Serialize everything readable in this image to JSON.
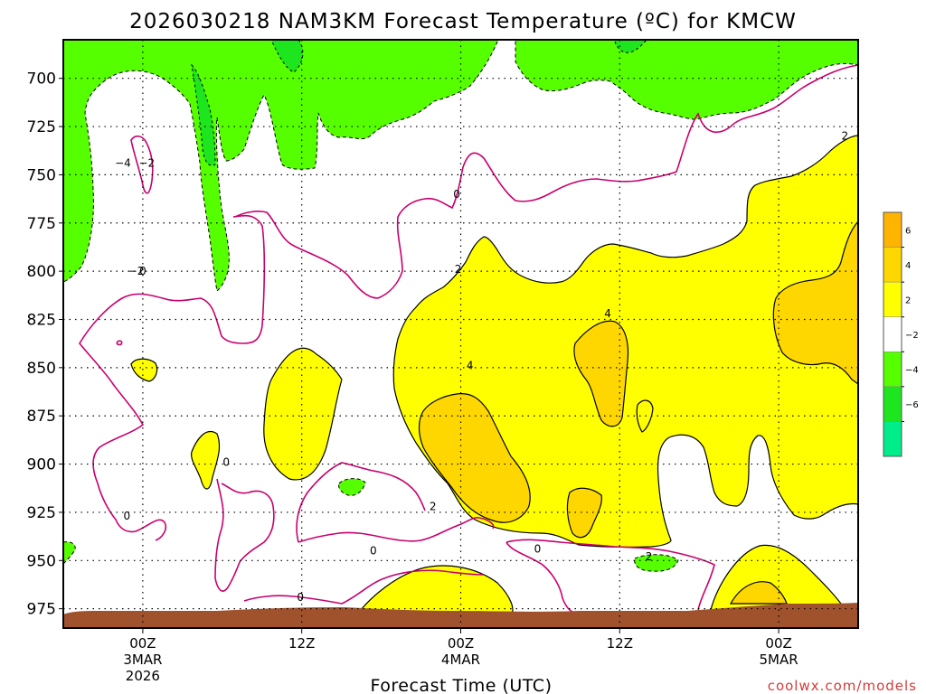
{
  "chart_data": {
    "type": "heatmap",
    "title": "2026030218 NAM3KM Forecast Temperature (ºC) for KMCW",
    "xlabel": "Forecast Time (UTC)",
    "ylabel": "",
    "y_ticks": [
      "700",
      "725",
      "750",
      "775",
      "800",
      "825",
      "850",
      "875",
      "900",
      "925",
      "950",
      "975"
    ],
    "y_tick_values": [
      700,
      725,
      750,
      775,
      800,
      825,
      850,
      875,
      900,
      925,
      950,
      975
    ],
    "ylim": [
      680,
      985
    ],
    "y_inverted": true,
    "x_ticks": [
      {
        "l1": "00Z",
        "l2": "3MAR",
        "l3": "2026",
        "hour": 6
      },
      {
        "l1": "12Z",
        "l2": "",
        "l3": "",
        "hour": 18
      },
      {
        "l1": "00Z",
        "l2": "4MAR",
        "l3": "",
        "hour": 30
      },
      {
        "l1": "12Z",
        "l2": "",
        "l3": "",
        "hour": 42
      },
      {
        "l1": "00Z",
        "l2": "5MAR",
        "l3": "",
        "hour": 54
      }
    ],
    "xlim": [
      0,
      60
    ],
    "grid": true,
    "colorbar": {
      "ticks": [
        "6",
        "4",
        "2",
        "−2",
        "−4",
        "−6"
      ],
      "bands": [
        {
          "from": 6,
          "to": 8,
          "color": "#ffb400"
        },
        {
          "from": 4,
          "to": 6,
          "color": "#ffd700"
        },
        {
          "from": 2,
          "to": 4,
          "color": "#ffff00"
        },
        {
          "from": -2,
          "to": 2,
          "color": "#ffffff"
        },
        {
          "from": -4,
          "to": -2,
          "color": "#55ff00"
        },
        {
          "from": -6,
          "to": -4,
          "color": "#1ee61e"
        },
        {
          "from": -8,
          "to": -6,
          "color": "#00ee8a"
        }
      ]
    },
    "contour_labels": [
      {
        "text": "−4",
        "hour": 4.5,
        "p": 744
      },
      {
        "text": "−2",
        "hour": 6.3,
        "p": 744
      },
      {
        "text": "0",
        "hour": 29.7,
        "p": 760
      },
      {
        "text": "2",
        "hour": 59.0,
        "p": 730
      },
      {
        "text": "0",
        "hour": 6.0,
        "p": 800
      },
      {
        "text": "−2",
        "hour": 5.5,
        "p": 800
      },
      {
        "text": "2",
        "hour": 29.8,
        "p": 799
      },
      {
        "text": "4",
        "hour": 41.1,
        "p": 822
      },
      {
        "text": "4",
        "hour": 30.7,
        "p": 849
      },
      {
        "text": "0",
        "hour": 12.3,
        "p": 899
      },
      {
        "text": "2",
        "hour": 27.9,
        "p": 922
      },
      {
        "text": "0",
        "hour": 4.8,
        "p": 927
      },
      {
        "text": "0",
        "hour": 23.4,
        "p": 945
      },
      {
        "text": "0",
        "hour": 35.8,
        "p": 944
      },
      {
        "text": "2",
        "hour": 44.2,
        "p": 948
      },
      {
        "text": "0",
        "hour": 17.9,
        "p": 969
      }
    ],
    "regions": {
      "cold_top": "−2 to −4 °C aloft between 680 and 790 hPa",
      "warm_layer": "2 to 6 °C layer from 770 to 935 hPa after 4MAR 00Z"
    }
  },
  "credit": "coolwx.com/models",
  "colors": {
    "frame": "#000000",
    "zero_line": "#c8006e",
    "terrain": "#a0522d",
    "green": "#55ff00",
    "yellow": "#ffff00",
    "gold": "#ffd700",
    "orange": "#ffb400"
  }
}
